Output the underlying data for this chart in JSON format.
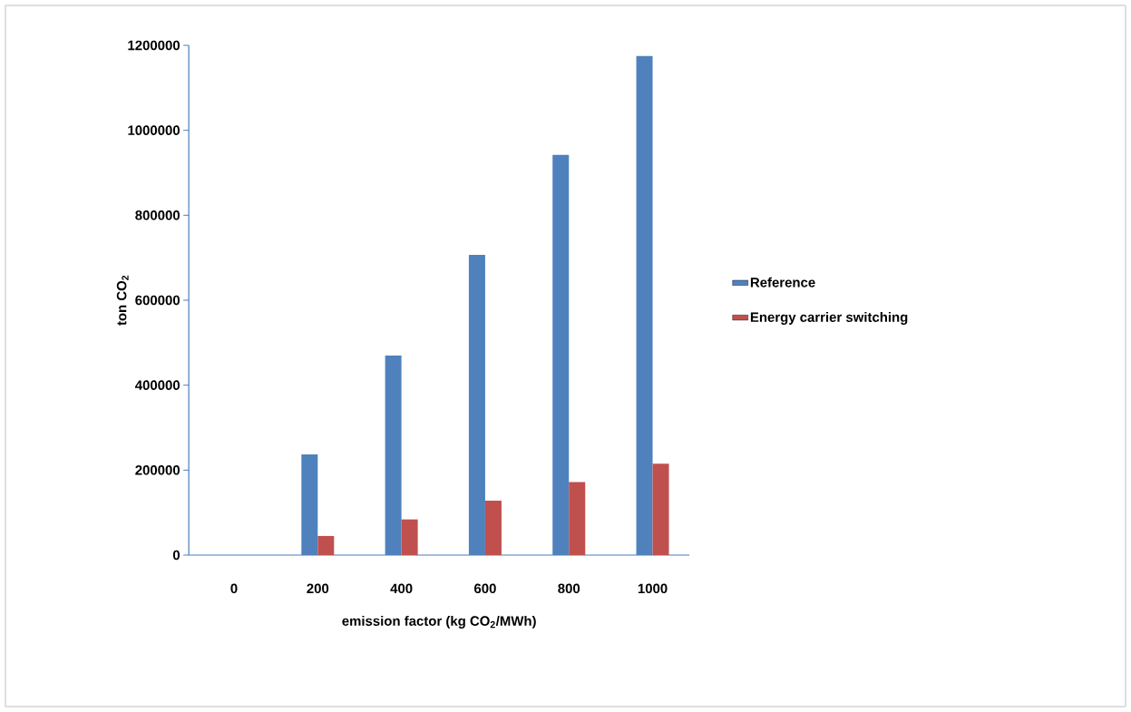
{
  "chart_data": {
    "type": "bar",
    "xlabel": "emission factor (kg CO$_{2}$/MWh)",
    "ylabel": "ton CO$_{2}$",
    "categories": [
      "0",
      "200",
      "400",
      "600",
      "800",
      "1000"
    ],
    "series": [
      {
        "name": "Reference",
        "color": "#4f81bd",
        "values": [
          0,
          237000,
          470000,
          707000,
          942000,
          1175000
        ]
      },
      {
        "name": "Energy carrier switching",
        "color": "#c0504d",
        "values": [
          0,
          45000,
          84000,
          128000,
          172000,
          215000
        ]
      }
    ],
    "ylim": [
      0,
      1200000
    ],
    "yticks": [
      0,
      200000,
      400000,
      600000,
      800000,
      1000000,
      1200000
    ],
    "grid": false,
    "legend": "right"
  }
}
